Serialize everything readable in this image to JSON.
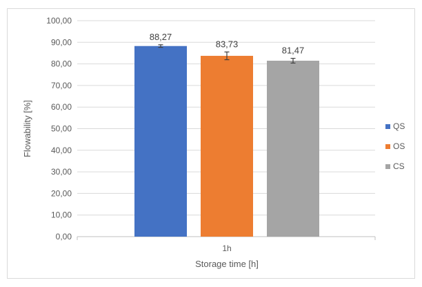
{
  "chart_data": {
    "type": "bar",
    "title": "",
    "xlabel": "Storage time [h]",
    "ylabel": "Flowability [%]",
    "categories": [
      "1h"
    ],
    "ylim": [
      0,
      100
    ],
    "yticks": [
      "0,00",
      "10,00",
      "20,00",
      "30,00",
      "40,00",
      "50,00",
      "60,00",
      "70,00",
      "80,00",
      "90,00",
      "100,00"
    ],
    "grid": true,
    "legend_position": "right",
    "series": [
      {
        "name": "QS",
        "values": [
          88.27
        ],
        "error": [
          0.6
        ],
        "label": "88,27",
        "color": "#4472C4"
      },
      {
        "name": "OS",
        "values": [
          83.73
        ],
        "error": [
          1.8
        ],
        "label": "83,73",
        "color": "#ED7D31"
      },
      {
        "name": "CS",
        "values": [
          81.47
        ],
        "error": [
          1.1
        ],
        "label": "81,47",
        "color": "#A5A5A5"
      }
    ]
  }
}
